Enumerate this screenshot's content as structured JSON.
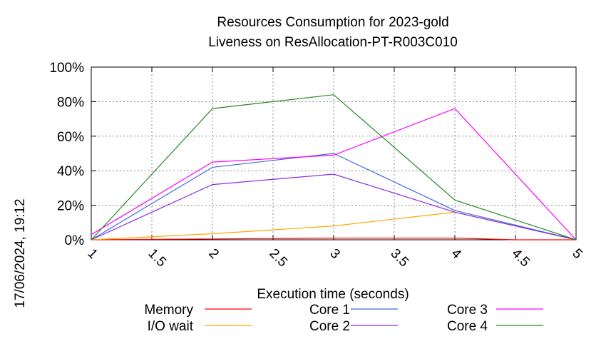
{
  "chart_data": {
    "type": "line",
    "title": [
      "Resources Consumption for 2023-gold",
      "Liveness on ResAllocation-PT-R003C010"
    ],
    "xlabel": "Execution time (seconds)",
    "ylabel": "",
    "side_label": "17/06/2024, 19:12",
    "xlim": [
      1,
      5
    ],
    "ylim": [
      0,
      100
    ],
    "x_ticks": [
      "1",
      "1.5",
      "2",
      "2.5",
      "3",
      "3.5",
      "4",
      "4.5",
      "5"
    ],
    "y_ticks": [
      "0%",
      "20%",
      "40%",
      "60%",
      "80%",
      "100%"
    ],
    "grid": true,
    "legend_position": "bottom",
    "series": [
      {
        "name": "Memory",
        "color": "#ff0000",
        "x": [
          1,
          2,
          3,
          4,
          4.5,
          5
        ],
        "values": [
          0,
          0.5,
          1,
          1,
          0,
          0
        ]
      },
      {
        "name": "I/O wait",
        "color": "#ffa500",
        "x": [
          1,
          2,
          3,
          4,
          5
        ],
        "values": [
          0,
          3.5,
          8,
          16,
          0
        ]
      },
      {
        "name": "Core 1",
        "color": "#4169e1",
        "x": [
          1,
          2,
          3,
          4,
          5
        ],
        "values": [
          0,
          42,
          50,
          17,
          0
        ]
      },
      {
        "name": "Core 2",
        "color": "#8a2be2",
        "x": [
          1,
          2,
          3,
          4,
          5
        ],
        "values": [
          0,
          32,
          38,
          16,
          0
        ]
      },
      {
        "name": "Core 3",
        "color": "#ff00ff",
        "x": [
          1,
          2,
          3,
          4,
          5
        ],
        "values": [
          3,
          45,
          49,
          76,
          0
        ]
      },
      {
        "name": "Core 4",
        "color": "#228b22",
        "x": [
          1,
          2,
          3,
          4,
          5
        ],
        "values": [
          0,
          76,
          84,
          23,
          0
        ]
      }
    ]
  }
}
